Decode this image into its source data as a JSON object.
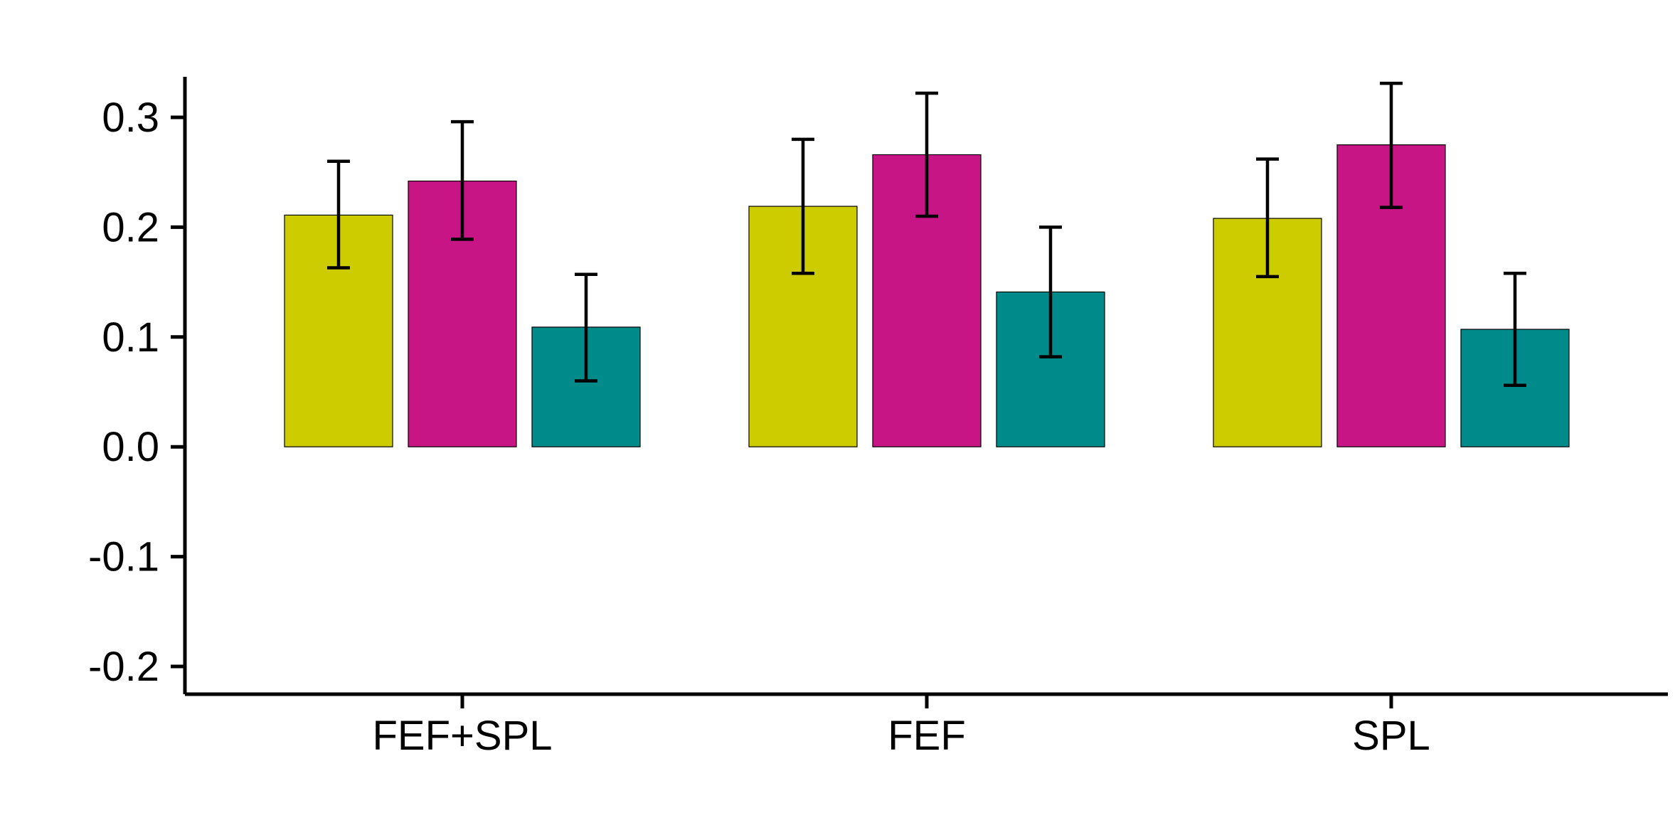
{
  "chart_data": {
    "type": "bar",
    "title": "",
    "xlabel": "",
    "ylabel": "",
    "categories": [
      "FEF+SPL",
      "FEF",
      "SPL"
    ],
    "ylim": [
      -0.2,
      0.3
    ],
    "yticks": [
      -0.2,
      -0.1,
      0.0,
      0.1,
      0.2,
      0.3
    ],
    "ytick_labels": [
      "-0.2",
      "-0.1",
      "0.0",
      "0.1",
      "0.2",
      "0.3"
    ],
    "grid": false,
    "legend": "none",
    "series": [
      {
        "color": "#CCCC00",
        "values": [
          0.211,
          0.219,
          0.208
        ],
        "err_low": [
          0.163,
          0.158,
          0.155
        ],
        "err_high": [
          0.26,
          0.28,
          0.262
        ]
      },
      {
        "color": "#C71585",
        "values": [
          0.242,
          0.266,
          0.275
        ],
        "err_low": [
          0.189,
          0.21,
          0.218
        ],
        "err_high": [
          0.296,
          0.322,
          0.331
        ]
      },
      {
        "color": "#008B8B",
        "values": [
          0.109,
          0.141,
          0.107
        ],
        "err_low": [
          0.06,
          0.082,
          0.056
        ],
        "err_high": [
          0.157,
          0.2,
          0.158
        ]
      }
    ]
  }
}
